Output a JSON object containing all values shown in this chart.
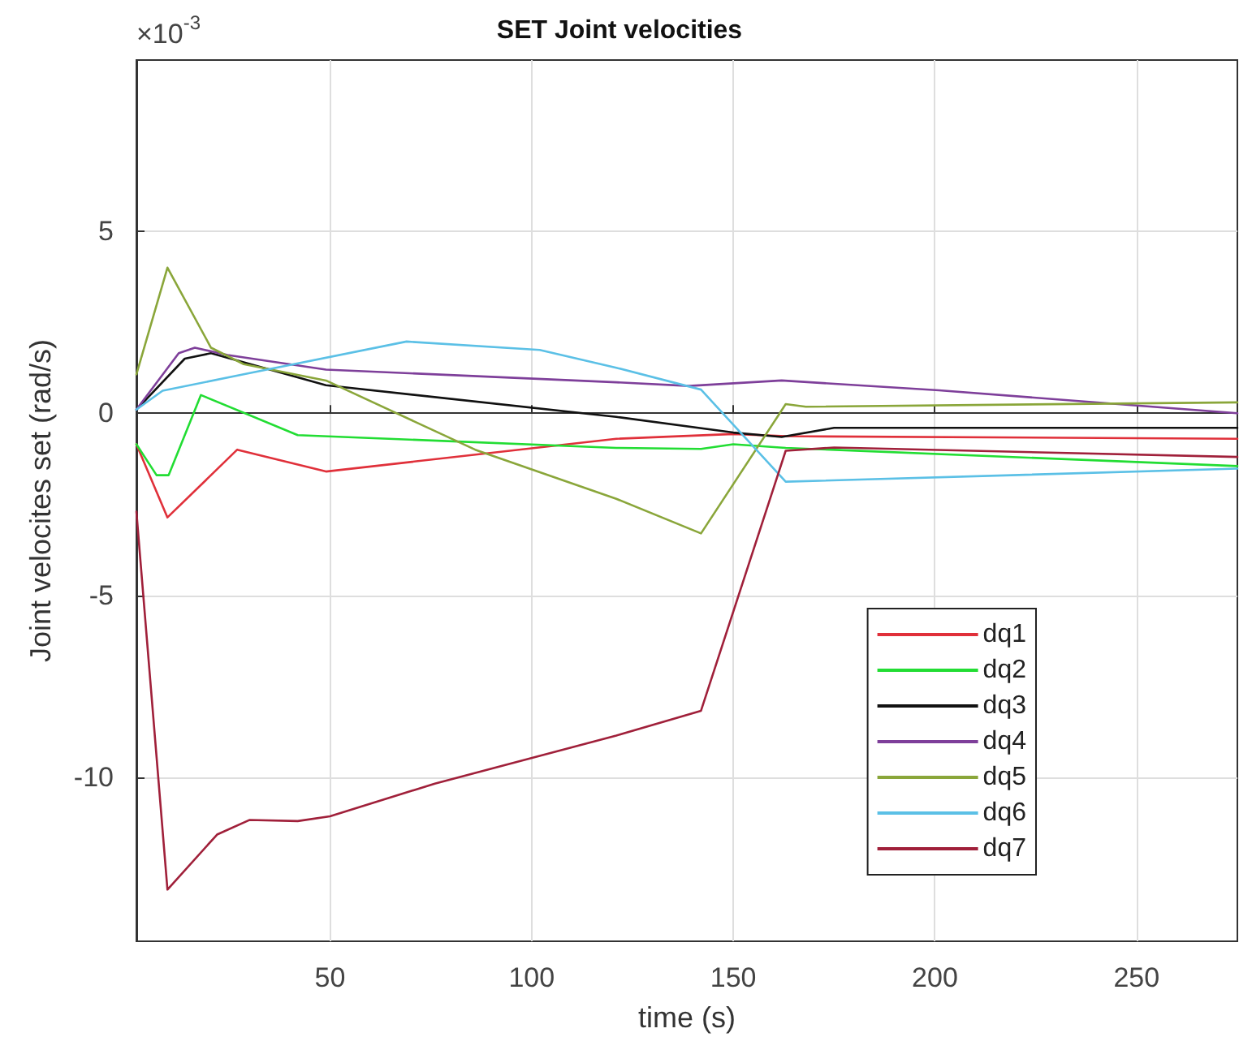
{
  "chart_data": {
    "type": "line",
    "title": "SET Joint velocities",
    "xlabel": "time (s)",
    "ylabel": "Joint velocites set (rad/s)",
    "annotations": [
      "×10$^{-3}$"
    ],
    "xlim": [
      2,
      275
    ],
    "xticks": [
      50,
      100,
      150,
      200,
      250
    ],
    "ylim": [
      -14.5,
      9.7
    ],
    "yticks": [
      -10,
      -5,
      0,
      5
    ],
    "grid": true,
    "legend": "bottom right",
    "marker": "none",
    "line_style": "solid",
    "series": [
      {
        "name": "dq1",
        "color": "#e0303a",
        "x": [
          2,
          9.7,
          27,
          49,
          121,
          150,
          163,
          275
        ],
        "values": [
          -0.85,
          -2.86,
          -1.0,
          -1.6,
          -0.7,
          -0.57,
          -0.63,
          -0.7
        ]
      },
      {
        "name": "dq2",
        "color": "#22dd33",
        "x": [
          2,
          7,
          10,
          18,
          42,
          121,
          142,
          150,
          163,
          275
        ],
        "values": [
          -0.85,
          -1.7,
          -1.7,
          0.5,
          -0.6,
          -0.95,
          -0.98,
          -0.85,
          -0.95,
          -1.45
        ]
      },
      {
        "name": "dq3",
        "color": "#111111",
        "x": [
          2,
          14,
          20.5,
          49,
          121,
          150,
          162,
          175,
          275
        ],
        "values": [
          0.1,
          1.5,
          1.65,
          0.77,
          -0.1,
          -0.53,
          -0.65,
          -0.4,
          -0.4
        ]
      },
      {
        "name": "dq4",
        "color": "#7e3f9a",
        "x": [
          2,
          12.5,
          16.5,
          24.6,
          49,
          121,
          139,
          162,
          201,
          275
        ],
        "values": [
          0.1,
          1.65,
          1.8,
          1.6,
          1.2,
          0.85,
          0.75,
          0.9,
          0.63,
          0.0
        ]
      },
      {
        "name": "dq5",
        "color": "#8aa63a",
        "x": [
          2,
          9.7,
          20.5,
          28.6,
          49,
          86,
          121,
          142,
          163,
          168,
          275
        ],
        "values": [
          1.07,
          4.0,
          1.8,
          1.35,
          0.9,
          -1.0,
          -2.35,
          -3.3,
          0.25,
          0.18,
          0.3
        ]
      },
      {
        "name": "dq6",
        "color": "#5bc0e6",
        "x": [
          2,
          8.5,
          28.6,
          69,
          102,
          121,
          142,
          163,
          275
        ],
        "values": [
          0.1,
          0.62,
          1.07,
          1.97,
          1.74,
          1.25,
          0.65,
          -1.88,
          -1.52
        ]
      },
      {
        "name": "dq7",
        "color": "#a0203a",
        "x": [
          2,
          9.7,
          22,
          30,
          42,
          50,
          76,
          121,
          142,
          160,
          163,
          175,
          275
        ],
        "values": [
          -2.7,
          -13.08,
          -11.57,
          -11.17,
          -11.2,
          -11.07,
          -10.17,
          -8.85,
          -8.17,
          -2.05,
          -1.03,
          -0.94,
          -1.2
        ]
      }
    ]
  }
}
